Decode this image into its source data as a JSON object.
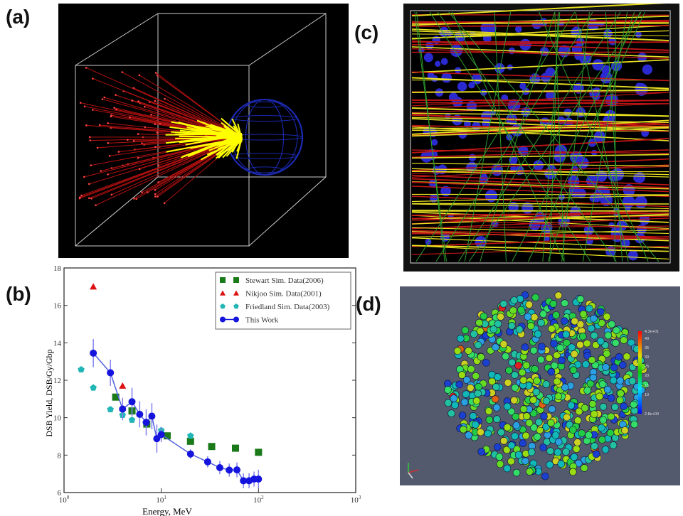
{
  "panel_labels": {
    "a": "(a)",
    "b": "(b)",
    "c": "(c)",
    "d": "(d)"
  },
  "colorbar": {
    "ticks": [
      "4.3e+01",
      "40",
      "35",
      "30",
      "25",
      "20",
      "15",
      "10",
      "2.8e+00"
    ]
  },
  "chart_data": {
    "type": "scatter",
    "xlabel": "Energy, MeV",
    "ylabel": "DSB Yield, DSB/Gy/Gbp",
    "xscale": "log",
    "xlim": [
      1,
      1000
    ],
    "ylim": [
      6,
      18
    ],
    "xticks": [
      "10^0",
      "10^1",
      "10^2",
      "10^3"
    ],
    "yticks": [
      "6",
      "8",
      "10",
      "12",
      "14",
      "16",
      "18"
    ],
    "legend_position": "top-right",
    "series": [
      {
        "name": "Stewart Sim. Data(2006)",
        "marker": "square",
        "color": "#1a7a1a",
        "x": [
          3.4,
          5,
          7.1,
          11.5,
          20,
          33,
          58,
          100
        ],
        "y": [
          11.1,
          10.36,
          9.66,
          9.03,
          8.74,
          8.46,
          8.37,
          8.15
        ]
      },
      {
        "name": "Nikjoo Sim. Data(2001)",
        "marker": "triangle",
        "color": "#dd1111",
        "x": [
          2,
          4
        ],
        "y": [
          17.0,
          11.7
        ]
      },
      {
        "name": "Friedland Sim. Data(2003)",
        "marker": "pentagon",
        "color": "#22b5b5",
        "x": [
          1.5,
          2,
          3,
          4,
          5,
          10,
          20
        ],
        "y": [
          12.57,
          11.6,
          10.44,
          10.14,
          9.88,
          9.32,
          9.03
        ]
      },
      {
        "name": "This Work",
        "marker": "circle",
        "color": "#1414dd",
        "line": true,
        "x": [
          2,
          3,
          4,
          5,
          6,
          7,
          8,
          9,
          10,
          20,
          30,
          40,
          50,
          60,
          70,
          80,
          90,
          100
        ],
        "y": [
          13.45,
          12.4,
          10.46,
          10.85,
          10.18,
          9.75,
          10.08,
          8.88,
          9.1,
          8.06,
          7.64,
          7.33,
          7.2,
          7.21,
          6.63,
          6.63,
          6.72,
          6.72
        ],
        "yerr": [
          0.75,
          0.7,
          0.6,
          0.75,
          0.7,
          0.7,
          0.7,
          0.75,
          0.4,
          0.25,
          0.3,
          0.35,
          0.35,
          0.4,
          0.4,
          0.4,
          0.4,
          0.5
        ]
      }
    ]
  }
}
